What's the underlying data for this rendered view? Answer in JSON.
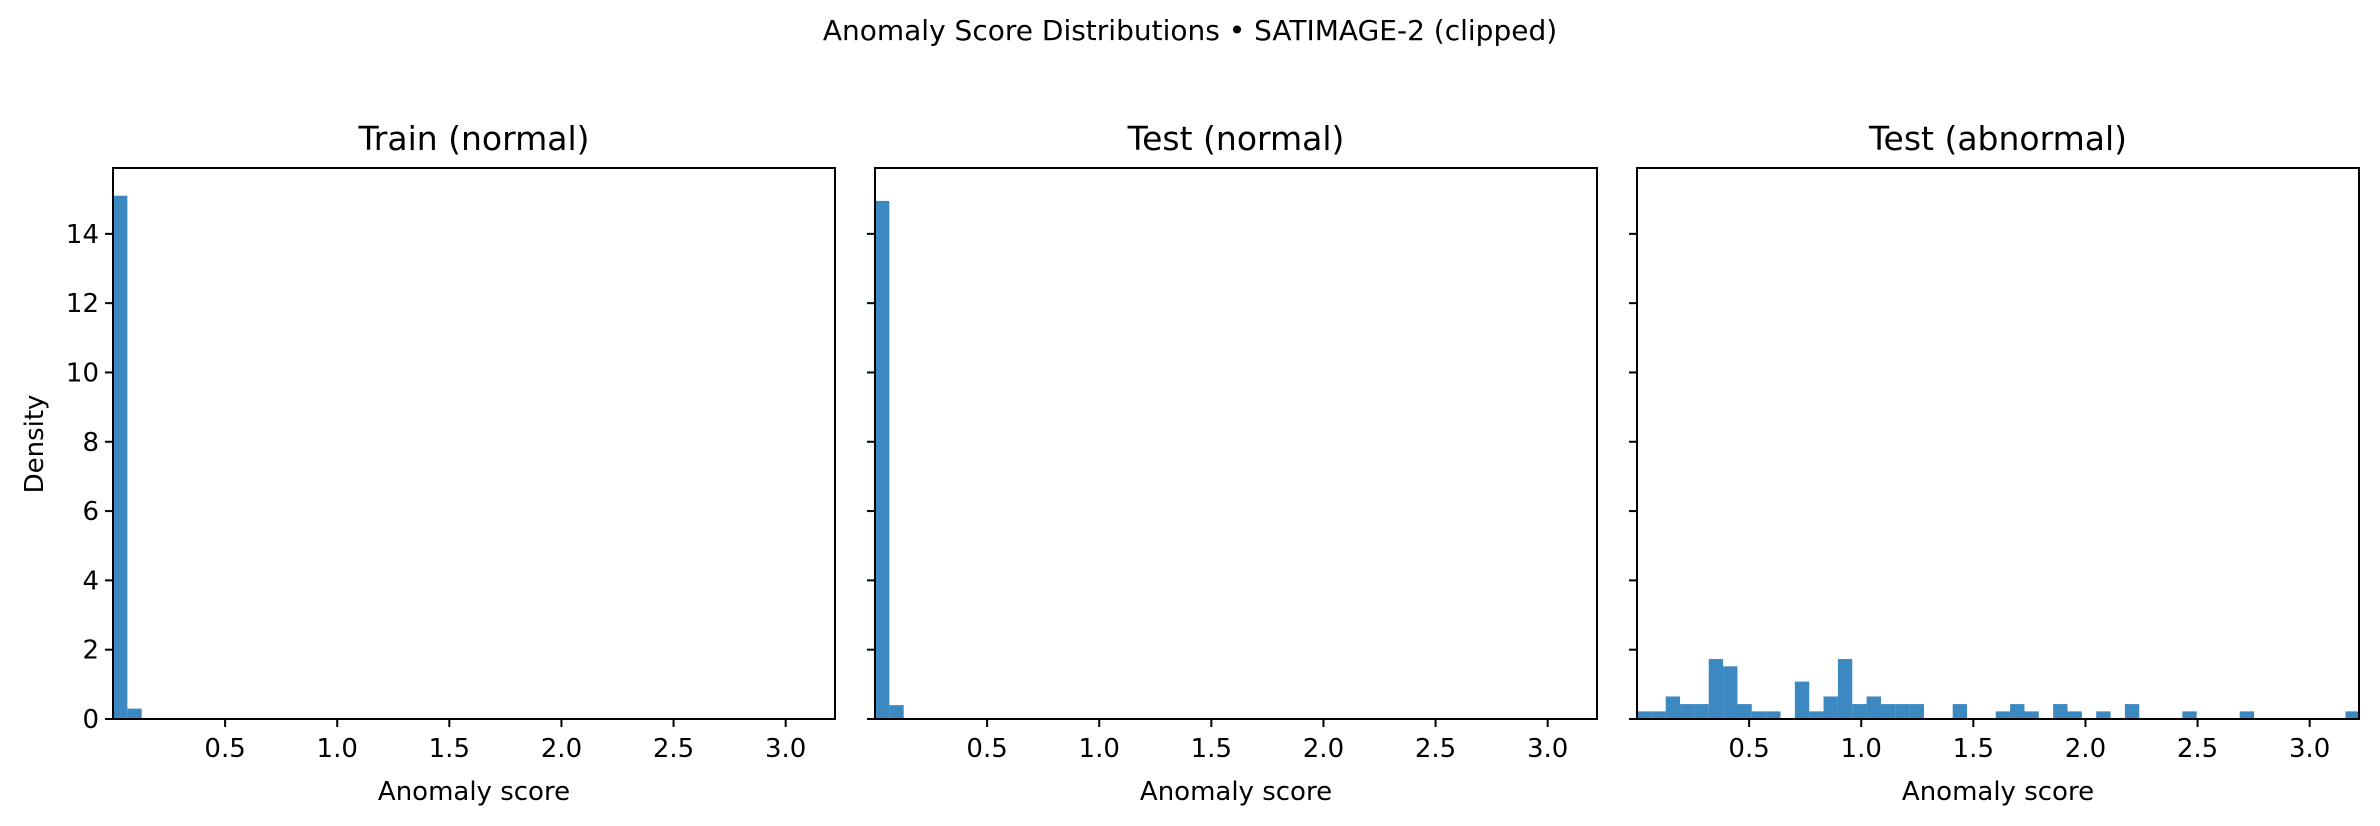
{
  "figure": {
    "suptitle": "Anomaly Score Distributions • SATIMAGE-2 (clipped)"
  },
  "colors": {
    "bar": "#3c88c1",
    "axis": "#000000"
  },
  "chart_data": [
    {
      "type": "bar",
      "title": "Train (normal)",
      "xlabel": "Anomaly score",
      "ylabel": "Density",
      "xlim": [
        0,
        3.22
      ],
      "ylim": [
        0,
        15.9
      ],
      "x_ticks": [
        0.5,
        1.0,
        1.5,
        2.0,
        2.5,
        3.0
      ],
      "x_tick_labels": [
        "0.5",
        "1.0",
        "1.5",
        "2.0",
        "2.5",
        "3.0"
      ],
      "y_ticks": [
        0,
        2,
        4,
        6,
        8,
        10,
        12,
        14
      ],
      "y_tick_labels": [
        "0",
        "2",
        "4",
        "6",
        "8",
        "10",
        "12",
        "14"
      ],
      "show_y_tick_labels": true,
      "grid": false,
      "bins": [
        {
          "x0": 0.0,
          "x1": 0.064,
          "density": 15.1
        },
        {
          "x0": 0.064,
          "x1": 0.128,
          "density": 0.3
        }
      ]
    },
    {
      "type": "bar",
      "title": "Test (normal)",
      "xlabel": "Anomaly score",
      "ylabel": "",
      "xlim": [
        0,
        3.22
      ],
      "ylim": [
        0,
        15.9
      ],
      "x_ticks": [
        0.5,
        1.0,
        1.5,
        2.0,
        2.5,
        3.0
      ],
      "x_tick_labels": [
        "0.5",
        "1.0",
        "1.5",
        "2.0",
        "2.5",
        "3.0"
      ],
      "y_ticks": [
        0,
        2,
        4,
        6,
        8,
        10,
        12,
        14
      ],
      "y_tick_labels": [],
      "show_y_tick_labels": false,
      "grid": false,
      "bins": [
        {
          "x0": 0.0,
          "x1": 0.064,
          "density": 14.95
        },
        {
          "x0": 0.064,
          "x1": 0.128,
          "density": 0.4
        }
      ]
    },
    {
      "type": "bar",
      "title": "Test (abnormal)",
      "xlabel": "Anomaly score",
      "ylabel": "",
      "xlim": [
        0,
        3.22
      ],
      "ylim": [
        0,
        15.9
      ],
      "x_ticks": [
        0.5,
        1.0,
        1.5,
        2.0,
        2.5,
        3.0
      ],
      "x_tick_labels": [
        "0.5",
        "1.0",
        "1.5",
        "2.0",
        "2.5",
        "3.0"
      ],
      "y_ticks": [
        0,
        2,
        4,
        6,
        8,
        10,
        12,
        14
      ],
      "y_tick_labels": [],
      "show_y_tick_labels": false,
      "grid": false,
      "bins": [
        {
          "x0": 0.0,
          "x1": 0.064,
          "density": 0.22
        },
        {
          "x0": 0.064,
          "x1": 0.128,
          "density": 0.22
        },
        {
          "x0": 0.128,
          "x1": 0.192,
          "density": 0.65
        },
        {
          "x0": 0.192,
          "x1": 0.256,
          "density": 0.43
        },
        {
          "x0": 0.256,
          "x1": 0.32,
          "density": 0.43
        },
        {
          "x0": 0.32,
          "x1": 0.384,
          "density": 1.73
        },
        {
          "x0": 0.384,
          "x1": 0.448,
          "density": 1.52
        },
        {
          "x0": 0.448,
          "x1": 0.512,
          "density": 0.43
        },
        {
          "x0": 0.512,
          "x1": 0.576,
          "density": 0.22
        },
        {
          "x0": 0.576,
          "x1": 0.64,
          "density": 0.22
        },
        {
          "x0": 0.704,
          "x1": 0.768,
          "density": 1.08
        },
        {
          "x0": 0.768,
          "x1": 0.832,
          "density": 0.22
        },
        {
          "x0": 0.832,
          "x1": 0.896,
          "density": 0.65
        },
        {
          "x0": 0.896,
          "x1": 0.96,
          "density": 1.73
        },
        {
          "x0": 0.96,
          "x1": 1.024,
          "density": 0.43
        },
        {
          "x0": 1.024,
          "x1": 1.088,
          "density": 0.65
        },
        {
          "x0": 1.088,
          "x1": 1.152,
          "density": 0.43
        },
        {
          "x0": 1.152,
          "x1": 1.216,
          "density": 0.43
        },
        {
          "x0": 1.216,
          "x1": 1.28,
          "density": 0.43
        },
        {
          "x0": 1.408,
          "x1": 1.472,
          "density": 0.43
        },
        {
          "x0": 1.6,
          "x1": 1.664,
          "density": 0.22
        },
        {
          "x0": 1.664,
          "x1": 1.728,
          "density": 0.43
        },
        {
          "x0": 1.728,
          "x1": 1.792,
          "density": 0.22
        },
        {
          "x0": 1.856,
          "x1": 1.92,
          "density": 0.43
        },
        {
          "x0": 1.92,
          "x1": 1.984,
          "density": 0.22
        },
        {
          "x0": 2.048,
          "x1": 2.112,
          "density": 0.22
        },
        {
          "x0": 2.176,
          "x1": 2.24,
          "density": 0.43
        },
        {
          "x0": 2.432,
          "x1": 2.496,
          "density": 0.22
        },
        {
          "x0": 2.688,
          "x1": 2.752,
          "density": 0.22
        },
        {
          "x0": 3.16,
          "x1": 3.22,
          "density": 0.22
        }
      ]
    }
  ]
}
